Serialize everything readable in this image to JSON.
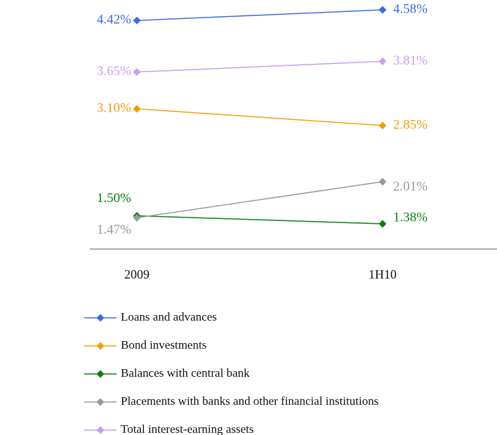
{
  "chart_data": {
    "type": "line",
    "categories": [
      "2009",
      "1H10"
    ],
    "series": [
      {
        "name": "Loans and advances",
        "color": "#3a6be0",
        "values": [
          4.42,
          4.58
        ],
        "value_labels": [
          "4.42%",
          "4.58%"
        ]
      },
      {
        "name": "Bond investments",
        "color": "#f59c0a",
        "values": [
          3.1,
          2.85
        ],
        "value_labels": [
          "3.10%",
          "2.85%"
        ]
      },
      {
        "name": "Balances with central bank",
        "color": "#0b7f0b",
        "values": [
          1.5,
          1.38
        ],
        "value_labels": [
          "1.50%",
          "1.38%"
        ]
      },
      {
        "name": "Placements with banks and other financial institutions",
        "color": "#999999",
        "values": [
          1.47,
          2.01
        ],
        "value_labels": [
          "1.47%",
          "2.01%"
        ]
      },
      {
        "name": "Total interest-earning assets",
        "color": "#c79ef0",
        "values": [
          3.65,
          3.81
        ],
        "value_labels": [
          "3.65%",
          "3.81%"
        ]
      }
    ]
  }
}
